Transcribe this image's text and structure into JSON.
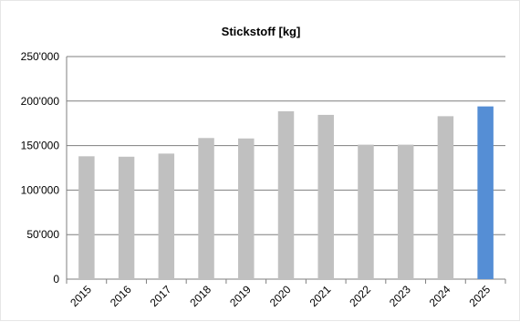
{
  "chart_data": {
    "type": "bar",
    "title": "Stickstoff [kg]",
    "xlabel": "",
    "ylabel": "",
    "categories": [
      "2015",
      "2016",
      "2017",
      "2018",
      "2019",
      "2020",
      "2021",
      "2022",
      "2023",
      "2024",
      "2025"
    ],
    "values": [
      138000,
      137500,
      141000,
      158500,
      158000,
      188500,
      184500,
      151000,
      151000,
      183000,
      194000
    ],
    "ylim": [
      0,
      250000
    ],
    "yticks": [
      0,
      50000,
      100000,
      150000,
      200000,
      250000
    ],
    "ytick_labels": [
      "0",
      "50'000",
      "100'000",
      "150'000",
      "200'000",
      "250'000"
    ],
    "colors": {
      "default_bar": "#c0c0c0",
      "highlight_bar": "#558ed5",
      "highlight_category": "2025",
      "grid": "#7f7f7f"
    },
    "grid": true,
    "legend": "none"
  }
}
